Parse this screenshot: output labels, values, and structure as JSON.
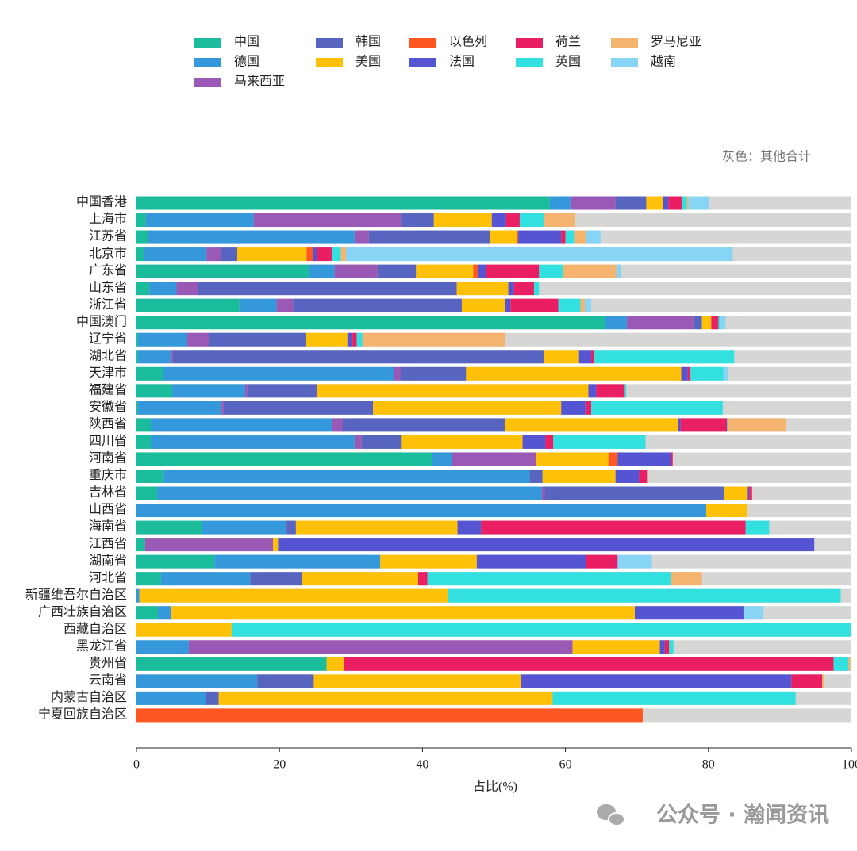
{
  "chart_data": {
    "type": "stacked-barh",
    "annotation": "灰色：其他合计",
    "xlabel": "占比(%)",
    "xlim": [
      0,
      100
    ],
    "xticks": [
      0,
      20,
      40,
      60,
      80,
      100
    ],
    "categories": [
      "中国香港",
      "上海市",
      "江苏省",
      "北京市",
      "广东省",
      "山东省",
      "浙江省",
      "中国澳门",
      "辽宁省",
      "湖北省",
      "天津市",
      "福建省",
      "安徽省",
      "陕西省",
      "四川省",
      "河南省",
      "重庆市",
      "吉林省",
      "山西省",
      "海南省",
      "江西省",
      "湖南省",
      "河北省",
      "新疆维吾尔自治区",
      "广西壮族自治区",
      "西藏自治区",
      "黑龙江省",
      "贵州省",
      "云南省",
      "内蒙古自治区",
      "宁夏回族自治区"
    ],
    "series": [
      {
        "name": "中国",
        "color": "#1abc9c",
        "values": [
          57.8,
          1.3,
          1.6,
          1.1,
          24.1,
          1.8,
          14.4,
          65.6,
          0.2,
          0.2,
          3.7,
          5.0,
          0.2,
          2.0,
          2.0,
          41.4,
          3.8,
          2.9,
          0,
          9.1,
          1.2,
          10.9,
          3.4,
          0,
          3.0,
          0,
          0,
          26.6,
          0,
          0,
          0
        ]
      },
      {
        "name": "德国",
        "color": "#3498db",
        "values": [
          2.9,
          15.1,
          28.9,
          8.7,
          3.6,
          3.8,
          5.2,
          3.0,
          6.9,
          4.7,
          32.3,
          10.2,
          11.7,
          25.4,
          28.5,
          2.7,
          51.2,
          53.8,
          79.7,
          11.9,
          0,
          23.2,
          12.5,
          0.4,
          1.9,
          0,
          7.3,
          0,
          16.9,
          9.7,
          0
        ]
      },
      {
        "name": "马来西亚",
        "color": "#9b59b6",
        "values": [
          6.3,
          20.6,
          2.0,
          2.0,
          6.0,
          3.0,
          2.3,
          9.3,
          3.1,
          0.2,
          0.9,
          0.3,
          0.3,
          1.4,
          1.0,
          11.8,
          0,
          0.4,
          0,
          0,
          17.9,
          0,
          0,
          0,
          0,
          0,
          53.7,
          0,
          0,
          0,
          0
        ]
      },
      {
        "name": "韩国",
        "color": "#5865c0",
        "values": [
          4.3,
          4.6,
          16.9,
          2.3,
          5.4,
          36.2,
          23.6,
          1.2,
          13.5,
          51.9,
          9.2,
          9.7,
          20.9,
          22.8,
          5.5,
          0,
          1.8,
          25.1,
          0,
          1.3,
          0,
          0,
          7.2,
          0,
          0,
          0,
          0,
          0,
          7.9,
          1.8,
          0
        ]
      },
      {
        "name": "美国",
        "color": "#ffc107",
        "values": [
          2.3,
          8.1,
          3.8,
          9.7,
          8.0,
          7.2,
          6.0,
          1.3,
          5.8,
          4.9,
          30.1,
          38.0,
          26.3,
          24.1,
          17.0,
          10.1,
          10.2,
          3.3,
          5.7,
          22.6,
          0.7,
          13.5,
          16.3,
          43.2,
          64.8,
          13.3,
          12.2,
          2.4,
          29.0,
          46.7,
          0
        ]
      },
      {
        "name": "以色列",
        "color": "#ff5722",
        "values": [
          0,
          0,
          0.2,
          0.9,
          0.7,
          0,
          0,
          0,
          0,
          0,
          0,
          0,
          0,
          0,
          0,
          1.3,
          0,
          0,
          0,
          0,
          0,
          0,
          0,
          0,
          0,
          0,
          0,
          0,
          0,
          0,
          70.8
        ]
      },
      {
        "name": "法国",
        "color": "#5555d4",
        "values": [
          0.8,
          2.0,
          6.0,
          0.6,
          1.1,
          0.8,
          0.8,
          0,
          0.7,
          1.7,
          0.9,
          1.1,
          3.4,
          0.4,
          3.2,
          7.5,
          3.3,
          0.2,
          0,
          3.3,
          75.0,
          15.3,
          0,
          0,
          15.2,
          0,
          0.7,
          0,
          37.8,
          0,
          0
        ]
      },
      {
        "name": "荷兰",
        "color": "#e91e63",
        "values": [
          1.9,
          1.9,
          0.6,
          2.0,
          7.4,
          2.8,
          6.7,
          1.0,
          0.6,
          0.4,
          0.4,
          4.0,
          0.8,
          6.5,
          1.1,
          0.2,
          1.1,
          0.4,
          0,
          37.0,
          0,
          4.4,
          1.3,
          0,
          0,
          0,
          0.6,
          68.5,
          4.3,
          0,
          0
        ]
      },
      {
        "name": "英国",
        "color": "#33e0e0",
        "values": [
          0.7,
          3.4,
          1.2,
          1.3,
          3.3,
          0.7,
          3.1,
          0.2,
          0.8,
          19.6,
          4.6,
          0.2,
          18.4,
          0.2,
          12.9,
          0,
          0,
          0,
          0,
          3.3,
          0,
          0,
          34.1,
          54.9,
          0,
          86.7,
          0.6,
          2.1,
          0,
          34.0,
          0
        ]
      },
      {
        "name": "罗马尼亚",
        "color": "#f4b36e",
        "values": [
          0.2,
          4.3,
          1.7,
          0.7,
          7.5,
          0,
          0.6,
          0,
          20.0,
          0,
          0,
          0,
          0,
          8.0,
          0,
          0,
          0,
          0,
          0,
          0,
          0,
          0,
          4.3,
          0,
          0,
          0,
          0,
          0.3,
          0.3,
          0,
          0
        ]
      },
      {
        "name": "越南",
        "color": "#87d4f5",
        "values": [
          2.9,
          0,
          2.0,
          54.1,
          0.7,
          0,
          0.9,
          0.8,
          0,
          0,
          0.6,
          0,
          0,
          0,
          0,
          0,
          0,
          0,
          0,
          0,
          0,
          4.8,
          0,
          0,
          2.8,
          0,
          0,
          0,
          0,
          0,
          0
        ]
      }
    ]
  },
  "watermark": "公众号 · 瀚闻资讯"
}
